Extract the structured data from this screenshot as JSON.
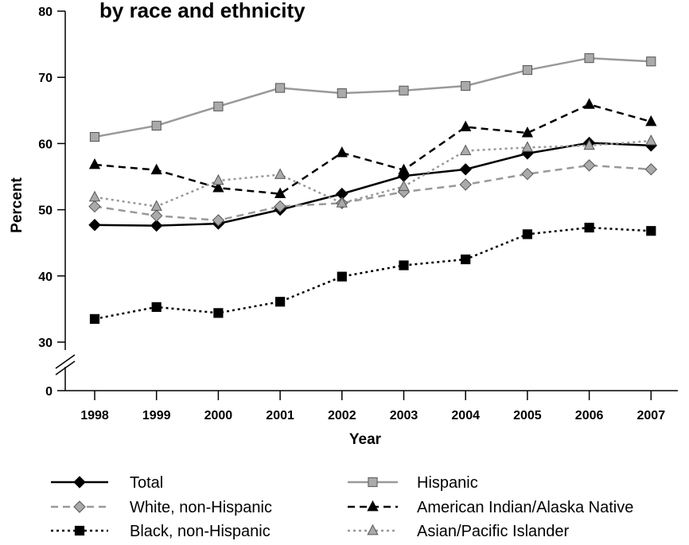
{
  "chart_data": {
    "type": "line",
    "title": "by race and ethnicity",
    "xlabel": "Year",
    "ylabel": "Percent",
    "ylim": [
      30,
      80
    ],
    "y_axis_break": true,
    "y_break_bottom_label": "0",
    "y_ticks": [
      30,
      40,
      50,
      60,
      70,
      80
    ],
    "categories": [
      "1998",
      "1999",
      "2000",
      "2001",
      "2002",
      "2003",
      "2004",
      "2005",
      "2006",
      "2007"
    ],
    "legend_position": "bottom",
    "series": [
      {
        "name": "Total",
        "line": "solid",
        "marker": "diamond",
        "color": "#000000",
        "fill": "#000000",
        "values": [
          47.7,
          47.6,
          47.9,
          50.0,
          52.4,
          55.1,
          56.1,
          58.5,
          60.1,
          59.7
        ]
      },
      {
        "name": "White, non-Hispanic",
        "line": "dashed",
        "marker": "diamond",
        "color": "#999999",
        "fill": "#aaaaaa",
        "values": [
          50.5,
          49.1,
          48.4,
          50.5,
          51.0,
          52.7,
          53.8,
          55.4,
          56.7,
          56.1
        ]
      },
      {
        "name": "Black, non-Hispanic",
        "line": "dotted",
        "marker": "square",
        "color": "#000000",
        "fill": "#000000",
        "values": [
          33.5,
          35.3,
          34.4,
          36.1,
          39.9,
          41.6,
          42.5,
          46.3,
          47.3,
          46.8
        ]
      },
      {
        "name": "Hispanic",
        "line": "solid",
        "marker": "square",
        "color": "#999999",
        "fill": "#aaaaaa",
        "values": [
          61.0,
          62.7,
          65.6,
          68.4,
          67.6,
          68.0,
          68.7,
          71.1,
          72.9,
          72.4
        ]
      },
      {
        "name": "American Indian/Alaska Native",
        "line": "dashed",
        "marker": "triangle",
        "color": "#000000",
        "fill": "#000000",
        "values": [
          56.8,
          56.0,
          53.3,
          52.4,
          58.6,
          56.0,
          62.5,
          61.6,
          65.9,
          63.3
        ]
      },
      {
        "name": "Asian/Pacific Islander",
        "line": "dotted",
        "marker": "triangle",
        "color": "#999999",
        "fill": "#aaaaaa",
        "values": [
          51.9,
          50.5,
          54.4,
          55.3,
          51.0,
          53.5,
          58.9,
          59.4,
          59.7,
          60.4
        ]
      }
    ]
  }
}
